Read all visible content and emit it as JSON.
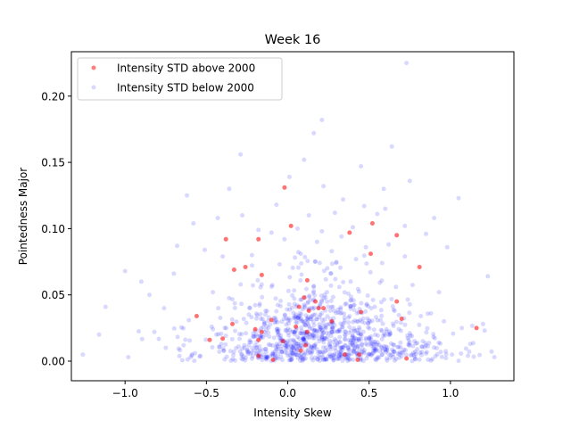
{
  "chart_data": {
    "type": "scatter",
    "title": "Week 16",
    "xlabel": "Intensity Skew",
    "ylabel": "Pointedness Major",
    "xlim": [
      -1.33,
      1.39
    ],
    "ylim": [
      -0.0148,
      0.2335
    ],
    "xticks": [
      -1.0,
      -0.5,
      0.0,
      0.5,
      1.0
    ],
    "xtick_labels": [
      "−1.0",
      "−0.5",
      "0.0",
      "0.5",
      "1.0"
    ],
    "yticks": [
      0.0,
      0.05,
      0.1,
      0.15,
      0.2
    ],
    "ytick_labels": [
      "0.00",
      "0.05",
      "0.10",
      "0.15",
      "0.20"
    ],
    "grid": false,
    "legend_position": "top-left",
    "series": [
      {
        "name": "Intensity STD above 2000",
        "color": "#ff0000",
        "points": [
          [
            -0.02,
            0.131
          ],
          [
            0.02,
            0.102
          ],
          [
            -0.38,
            0.092
          ],
          [
            -0.18,
            0.092
          ],
          [
            0.38,
            0.097
          ],
          [
            0.52,
            0.104
          ],
          [
            0.67,
            0.095
          ],
          [
            -0.33,
            0.069
          ],
          [
            -0.26,
            0.071
          ],
          [
            -0.16,
            0.065
          ],
          [
            0.51,
            0.081
          ],
          [
            0.81,
            0.071
          ],
          [
            0.12,
            0.061
          ],
          [
            0.1,
            0.048
          ],
          [
            0.17,
            0.045
          ],
          [
            0.07,
            0.041
          ],
          [
            0.13,
            0.038
          ],
          [
            0.22,
            0.04
          ],
          [
            0.19,
            0.04
          ],
          [
            0.45,
            0.037
          ],
          [
            0.67,
            0.045
          ],
          [
            0.7,
            0.032
          ],
          [
            -0.1,
            0.031
          ],
          [
            -0.34,
            0.028
          ],
          [
            -0.56,
            0.034
          ],
          [
            -0.2,
            0.024
          ],
          [
            -0.16,
            0.022
          ],
          [
            0.05,
            0.026
          ],
          [
            0.12,
            0.022
          ],
          [
            0.27,
            0.03
          ],
          [
            -0.18,
            0.016
          ],
          [
            -0.48,
            0.016
          ],
          [
            -0.4,
            0.017
          ],
          [
            -0.03,
            0.015
          ],
          [
            0.11,
            0.012
          ],
          [
            0.08,
            0.008
          ],
          [
            0.35,
            0.005
          ],
          [
            0.44,
            0.005
          ],
          [
            -0.18,
            0.004
          ],
          [
            -0.09,
            0.001
          ],
          [
            0.43,
            0.001
          ],
          [
            0.73,
            0.002
          ],
          [
            1.16,
            0.025
          ]
        ]
      },
      {
        "name": "Intensity STD below 2000",
        "color": "#0000ff",
        "points": [
          [
            0.73,
            0.225
          ],
          [
            0.21,
            0.182
          ],
          [
            0.16,
            0.172
          ],
          [
            0.64,
            0.162
          ],
          [
            0.1,
            0.152
          ],
          [
            -0.29,
            0.156
          ],
          [
            0.45,
            0.147
          ],
          [
            0.75,
            0.136
          ],
          [
            0.01,
            0.139
          ],
          [
            0.22,
            0.132
          ],
          [
            0.59,
            0.13
          ],
          [
            -0.36,
            0.13
          ],
          [
            -0.62,
            0.125
          ],
          [
            1.05,
            0.123
          ],
          [
            0.34,
            0.122
          ],
          [
            -0.07,
            0.118
          ],
          [
            0.47,
            0.117
          ],
          [
            0.6,
            0.115
          ],
          [
            0.9,
            0.108
          ],
          [
            -0.28,
            0.11
          ],
          [
            0.29,
            0.112
          ],
          [
            0.55,
            0.111
          ],
          [
            0.13,
            0.11
          ],
          [
            -0.43,
            0.108
          ],
          [
            -0.58,
            0.104
          ],
          [
            0.72,
            0.102
          ],
          [
            0.4,
            0.101
          ],
          [
            0.06,
            0.1
          ],
          [
            0.21,
            0.098
          ],
          [
            0.85,
            0.096
          ],
          [
            -0.18,
            0.099
          ],
          [
            -0.1,
            0.097
          ],
          [
            0.33,
            0.094
          ],
          [
            -0.02,
            0.092
          ],
          [
            0.18,
            0.09
          ],
          [
            0.62,
            0.088
          ],
          [
            -0.68,
            0.087
          ],
          [
            0.98,
            0.086
          ],
          [
            -0.51,
            0.084
          ],
          [
            0.48,
            0.086
          ],
          [
            0.27,
            0.083
          ],
          [
            0.08,
            0.081
          ],
          [
            -0.22,
            0.08
          ],
          [
            0.72,
            0.079
          ],
          [
            -0.4,
            0.079
          ],
          [
            0.42,
            0.077
          ],
          [
            0.17,
            0.075
          ],
          [
            0.58,
            0.074
          ],
          [
            -0.05,
            0.073
          ],
          [
            -1.0,
            0.068
          ],
          [
            1.23,
            0.064
          ],
          [
            -0.9,
            0.06
          ],
          [
            -1.12,
            0.041
          ],
          [
            -0.85,
            0.05
          ],
          [
            0.93,
            0.052
          ],
          [
            -0.7,
            0.066
          ],
          [
            -0.76,
            0.04
          ],
          [
            -1.26,
            0.005
          ],
          [
            -1.16,
            0.02
          ],
          [
            -0.98,
            0.003
          ],
          [
            -0.82,
            0.022
          ],
          [
            1.21,
            0.023
          ],
          [
            1.27,
            0.003
          ],
          [
            1.07,
            0.025
          ],
          [
            1.01,
            0.005
          ],
          [
            -0.57,
            0.006
          ],
          [
            -0.64,
            0.012
          ],
          [
            -0.46,
            0.052
          ],
          [
            0.88,
            0.036
          ],
          [
            0.96,
            0.03
          ],
          [
            1.2,
            0.028
          ],
          [
            -0.75,
            0.01
          ],
          [
            0.85,
            0.012
          ]
        ]
      }
    ]
  }
}
